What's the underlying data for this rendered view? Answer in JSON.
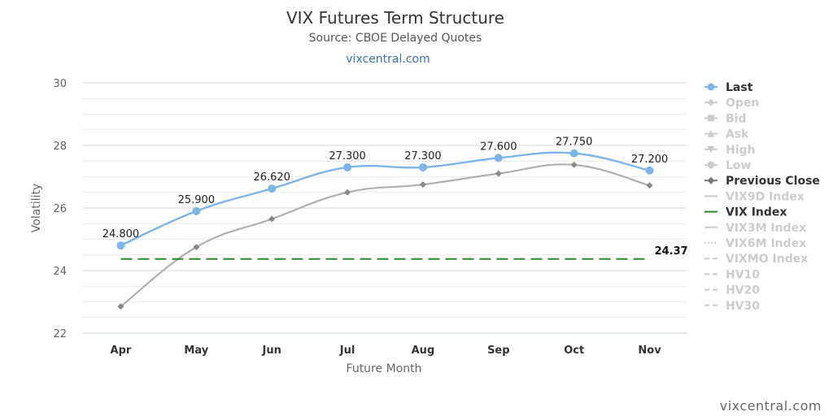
{
  "chart_data": {
    "type": "line",
    "title": "VIX Futures Term Structure",
    "subtitle": "Source: CBOE Delayed Quotes",
    "link_text": "vixcentral.com",
    "credit": "vixcentral.com",
    "xlabel": "Future Month",
    "ylabel": "Volatility",
    "ylim": [
      22,
      30
    ],
    "yticks": [
      "22",
      "24",
      "26",
      "28",
      "30"
    ],
    "categories": [
      "Apr",
      "May",
      "Jun",
      "Jul",
      "Aug",
      "Sep",
      "Oct",
      "Nov"
    ],
    "grid": true,
    "legend_position": "right",
    "series": [
      {
        "name": "Last",
        "values": [
          24.8,
          25.9,
          26.62,
          27.3,
          27.3,
          27.6,
          27.75,
          27.2
        ],
        "labels": [
          "24.800",
          "25.900",
          "26.620",
          "27.300",
          "27.300",
          "27.600",
          "27.750",
          "27.200"
        ],
        "color": "#7cb5ec"
      },
      {
        "name": "Previous Close",
        "values": [
          22.85,
          24.75,
          25.65,
          26.5,
          26.75,
          27.1,
          27.38,
          26.72
        ],
        "color": "#999999"
      },
      {
        "name": "VIX Index",
        "value": 24.37,
        "label": "24.37",
        "color": "#2a8a2a"
      }
    ],
    "legend": [
      {
        "name": "Last",
        "active": true,
        "marker": "circle",
        "color": "#7cb5ec"
      },
      {
        "name": "Open",
        "active": false,
        "marker": "diamond"
      },
      {
        "name": "Bid",
        "active": false,
        "marker": "square"
      },
      {
        "name": "Ask",
        "active": false,
        "marker": "triangle-up"
      },
      {
        "name": "High",
        "active": false,
        "marker": "triangle-down"
      },
      {
        "name": "Low",
        "active": false,
        "marker": "circle"
      },
      {
        "name": "Previous Close",
        "active": true,
        "marker": "diamond",
        "color": "#777777"
      },
      {
        "name": "VIX9D Index",
        "active": false,
        "marker": "line"
      },
      {
        "name": "VIX Index",
        "active": true,
        "marker": "line",
        "color": "#2a8a2a"
      },
      {
        "name": "VIX3M Index",
        "active": false,
        "marker": "line"
      },
      {
        "name": "VIX6M Index",
        "active": false,
        "marker": "dotted"
      },
      {
        "name": "VIXMO Index",
        "active": false,
        "marker": "dashed"
      },
      {
        "name": "HV10",
        "active": false,
        "marker": "dashed"
      },
      {
        "name": "HV20",
        "active": false,
        "marker": "dashed"
      },
      {
        "name": "HV30",
        "active": false,
        "marker": "dashed"
      }
    ]
  }
}
